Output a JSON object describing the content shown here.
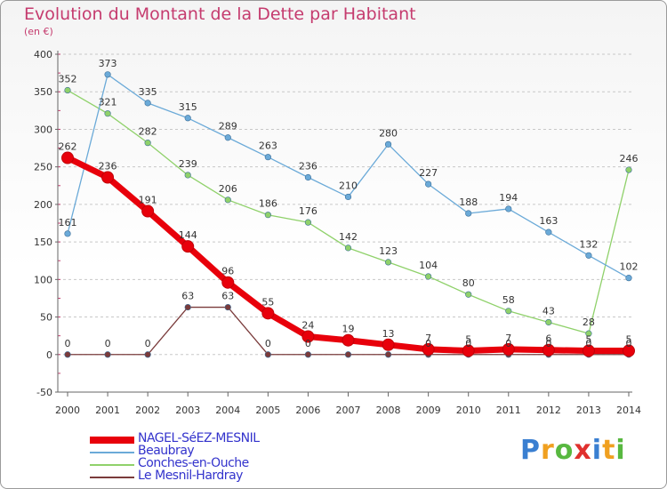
{
  "header": {
    "title": "Evolution du Montant de la Dette par Habitant",
    "subtitle": "(en €)"
  },
  "legend": {
    "items": [
      {
        "label": "NAGEL-SéEZ-MESNIL",
        "color": "#e8000b"
      },
      {
        "label": "Beaubray",
        "color": "#6baad8"
      },
      {
        "label": "Conches-en-Ouche",
        "color": "#8fd16a"
      },
      {
        "label": "Le Mesnil-Hardray",
        "color": "#7a3b3b"
      }
    ]
  },
  "logo": {
    "text": "Proxiti",
    "colors": [
      "#3a7fd1",
      "#f0a020",
      "#58b840",
      "#e0302e",
      "#3a7fd1",
      "#f0a020",
      "#58b840"
    ]
  },
  "chart_data": {
    "type": "line",
    "title": "Evolution du Montant de la Dette par Habitant",
    "subtitle": "(en €)",
    "xlabel": "",
    "ylabel": "",
    "x": [
      "2000",
      "2001",
      "2002",
      "2003",
      "2004",
      "2005",
      "2006",
      "2007",
      "2008",
      "2009",
      "2010",
      "2011",
      "2012",
      "2013",
      "2014"
    ],
    "ylim": [
      -50,
      400
    ],
    "yticks": [
      "-50",
      "0",
      "50",
      "100",
      "150",
      "200",
      "250",
      "300",
      "350",
      "400"
    ],
    "grid": "dashed-horizontal",
    "series": [
      {
        "name": "NAGEL-SéEZ-MESNIL",
        "color": "#e8000b",
        "values": [
          262,
          236,
          191,
          144,
          96,
          55,
          24,
          19,
          13,
          7,
          5,
          7,
          6,
          5,
          5
        ],
        "labels": [
          "262",
          "236",
          "191",
          "144",
          "96",
          "55",
          "24",
          "19",
          "13",
          "7",
          "5",
          "7",
          "6",
          "5",
          "5"
        ]
      },
      {
        "name": "Beaubray",
        "color": "#6baad8",
        "values": [
          161,
          373,
          335,
          315,
          289,
          263,
          236,
          210,
          280,
          227,
          188,
          194,
          163,
          132,
          102
        ],
        "labels": [
          "161",
          "373",
          "335",
          "315",
          "289",
          "263",
          "236",
          "210",
          "280",
          "227",
          "188",
          "194",
          "163",
          "132",
          "102"
        ]
      },
      {
        "name": "Conches-en-Ouche",
        "color": "#8fd16a",
        "values": [
          352,
          321,
          282,
          239,
          206,
          186,
          176,
          142,
          123,
          104,
          80,
          58,
          43,
          28,
          246
        ],
        "labels": [
          "352",
          "321",
          "282",
          "239",
          "206",
          "186",
          "176",
          "142",
          "123",
          "104",
          "80",
          "58",
          "43",
          "28",
          "246"
        ]
      },
      {
        "name": "Le Mesnil-Hardray",
        "color": "#7a3b3b",
        "values": [
          0,
          0,
          0,
          63,
          63,
          0,
          0,
          0,
          0,
          0,
          0,
          0,
          0,
          0,
          0
        ],
        "labels": [
          "0",
          "0",
          "0",
          "63",
          "63",
          "0",
          "0",
          "",
          "",
          "0",
          "0",
          "0",
          "0",
          "0",
          "0"
        ]
      }
    ]
  }
}
